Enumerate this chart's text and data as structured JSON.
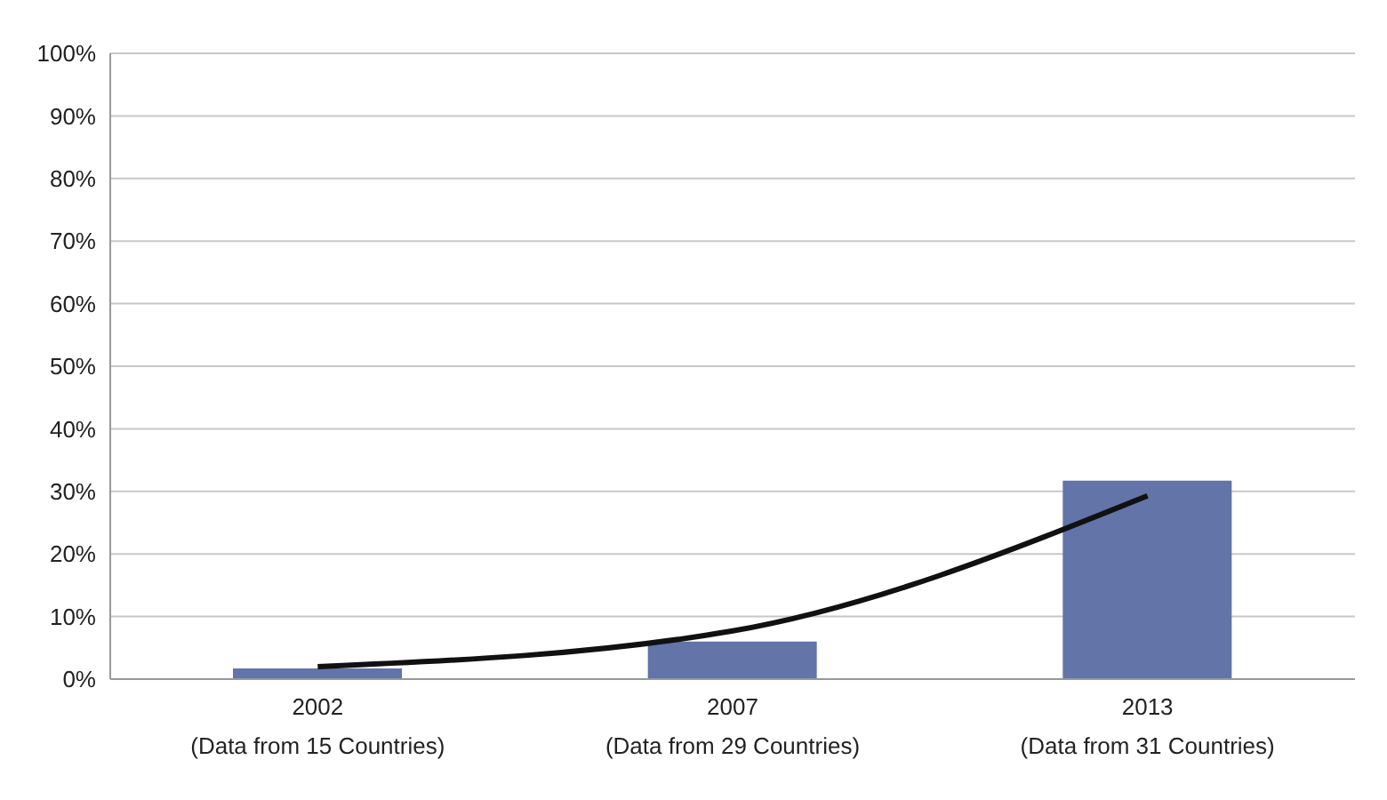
{
  "chart_data": {
    "type": "bar",
    "categories": [
      "2002\n(Data from 15 Countries)",
      "2007\n(Data from 29 Countries)",
      "2013\n(Data from 31 Countries)"
    ],
    "series": [
      {
        "color": "#6274a8",
        "values": [
          1.7,
          6,
          31.7
        ]
      },
      {
        "type": "line",
        "color": "#111111",
        "x": [
          "2002\n(Data from 15 Countries)",
          "2007\n(Data from 29 Countries)",
          "2013\n(Data from 31 Countries)"
        ],
        "values": [
          2,
          7.7,
          29.3
        ]
      }
    ],
    "ylim": [
      0,
      100
    ],
    "yticks": [
      {
        "value": 0,
        "label": "0%"
      },
      {
        "value": 10,
        "label": "10%"
      },
      {
        "value": 20,
        "label": "20%"
      },
      {
        "value": 30,
        "label": "30%"
      },
      {
        "value": 40,
        "label": "40%"
      },
      {
        "value": 50,
        "label": "50%"
      },
      {
        "value": 60,
        "label": "60%"
      },
      {
        "value": 70,
        "label": "70%"
      },
      {
        "value": 80,
        "label": "80%"
      },
      {
        "value": 90,
        "label": "90%"
      },
      {
        "value": 100,
        "label": "100%"
      }
    ],
    "grid": "y",
    "legend": false,
    "marker": "none",
    "line_style": "solid"
  }
}
